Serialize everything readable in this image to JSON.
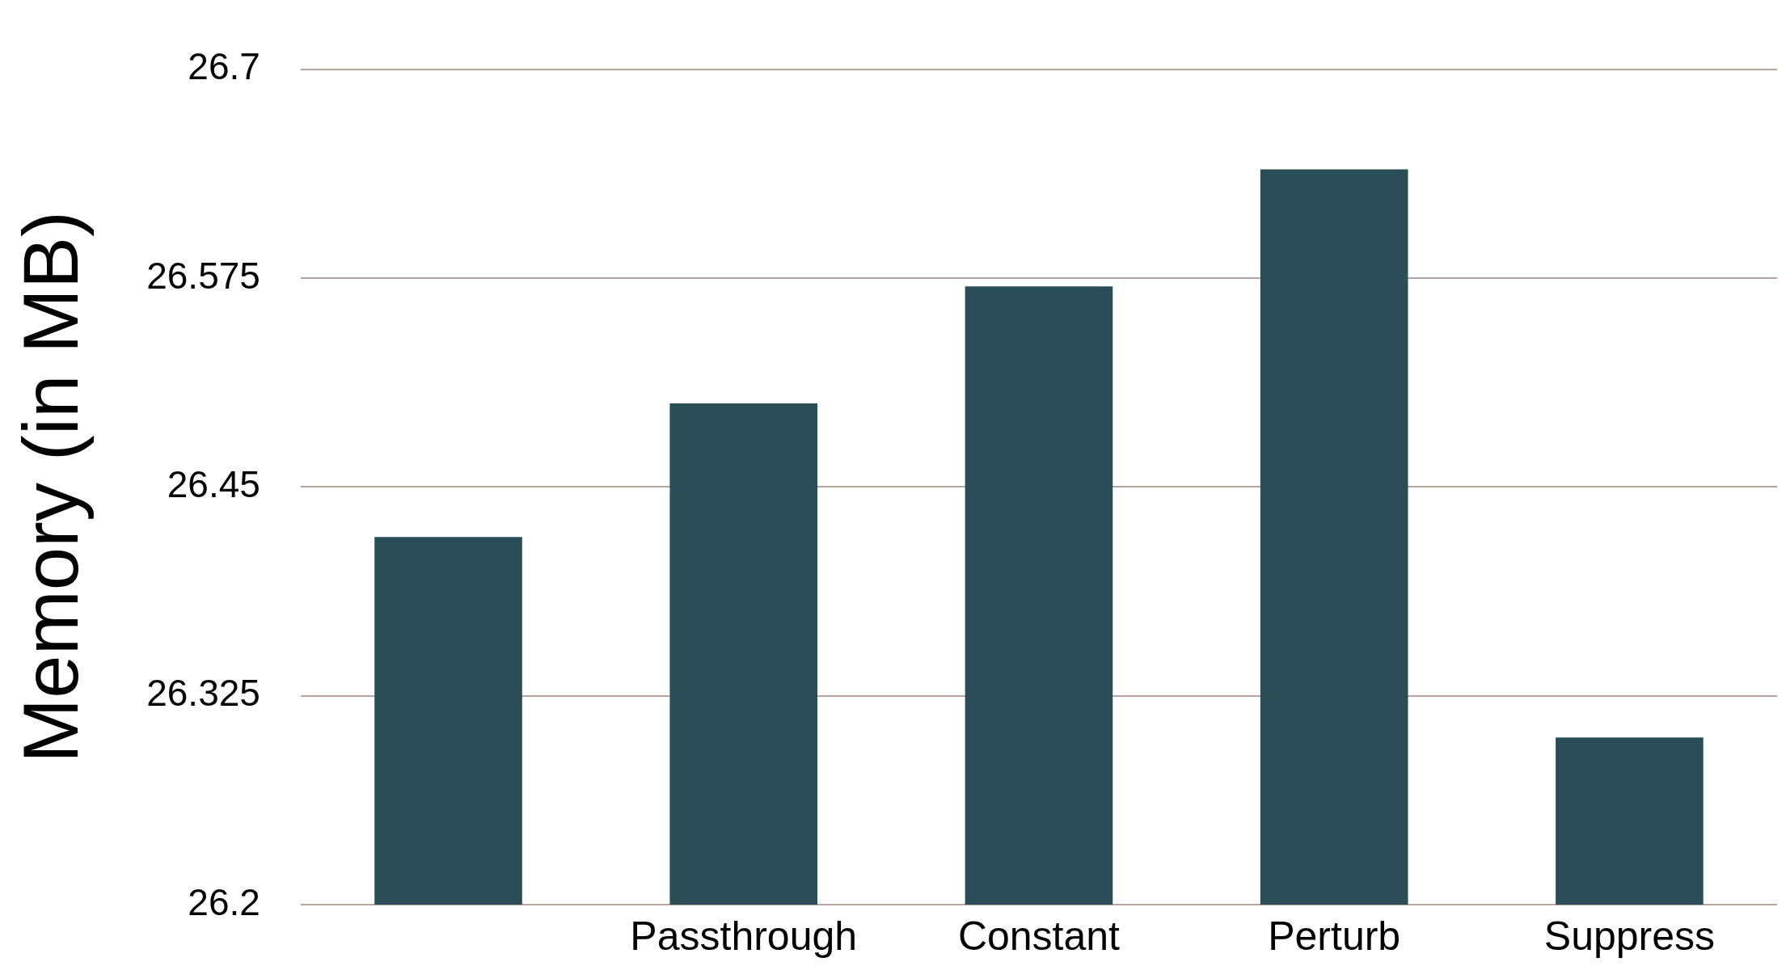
{
  "chart_data": {
    "type": "bar",
    "ylabel": "Memory (in MB)",
    "categories": [
      null,
      "Passthrough",
      "Constant",
      "Perturb",
      "Suppress"
    ],
    "values": [
      26.42,
      26.5,
      26.57,
      26.64,
      26.3
    ],
    "color": "#2a4d57",
    "ylim": [
      26.2,
      26.7
    ],
    "yticks": [
      26.2,
      26.325,
      26.45,
      26.575,
      26.7
    ],
    "grid": "y",
    "legend": false
  }
}
